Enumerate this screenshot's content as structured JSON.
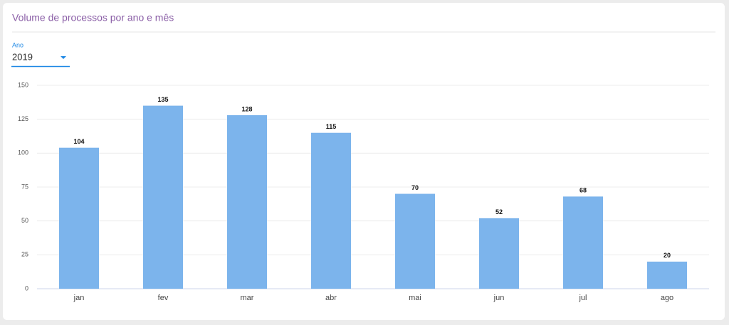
{
  "filter": {
    "label": "Ano",
    "value": "2019"
  },
  "chart_data": {
    "type": "bar",
    "title": "Volume de processos por ano e mês",
    "categories": [
      "jan",
      "fev",
      "mar",
      "abr",
      "mai",
      "jun",
      "jul",
      "ago"
    ],
    "values": [
      104,
      135,
      128,
      115,
      70,
      52,
      68,
      20
    ],
    "color": "#7cb4ec",
    "ylim": [
      0,
      150
    ],
    "yticks": [
      0,
      25,
      50,
      75,
      100,
      125,
      150
    ],
    "grid": true,
    "data_labels": true
  }
}
